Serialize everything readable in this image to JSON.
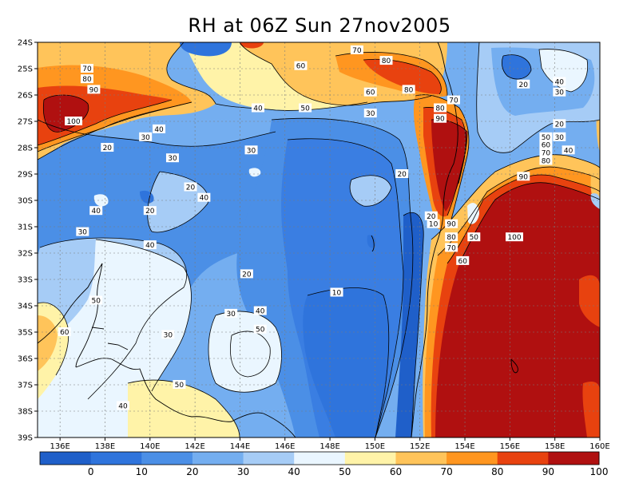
{
  "title": "RH at 06Z Sun 27nov2005",
  "chart_data": {
    "type": "heatmap",
    "variable": "RH",
    "lon_ticks": [
      "136E",
      "138E",
      "140E",
      "142E",
      "144E",
      "146E",
      "148E",
      "150E",
      "152E",
      "154E",
      "156E",
      "158E",
      "160E"
    ],
    "lat_ticks": [
      "24S",
      "25S",
      "26S",
      "27S",
      "28S",
      "29S",
      "30S",
      "31S",
      "32S",
      "33S",
      "34S",
      "35S",
      "36S",
      "37S",
      "38S",
      "39S"
    ],
    "lon_range": [
      135,
      160
    ],
    "lat_range": [
      -39,
      -24
    ],
    "colorbar": {
      "labels": [
        "0",
        "10",
        "20",
        "30",
        "40",
        "50",
        "60",
        "70",
        "80",
        "90",
        "100"
      ],
      "colors": [
        "#1f5fc9",
        "#2f74dc",
        "#4b8fe6",
        "#74aef0",
        "#a6ccf6",
        "#eaf6ff",
        "#fff3a8",
        "#ffc45a",
        "#ff9620",
        "#e8420f",
        "#b01010"
      ]
    },
    "contour_labels": [
      {
        "text": "70",
        "lon": 137.2,
        "lat": -25.0
      },
      {
        "text": "80",
        "lon": 137.2,
        "lat": -25.4
      },
      {
        "text": "90",
        "lon": 137.5,
        "lat": -25.8
      },
      {
        "text": "100",
        "lon": 136.6,
        "lat": -27.0
      },
      {
        "text": "40",
        "lon": 140.4,
        "lat": -27.3
      },
      {
        "text": "30",
        "lon": 139.8,
        "lat": -27.6
      },
      {
        "text": "20",
        "lon": 138.1,
        "lat": -28.0
      },
      {
        "text": "30",
        "lon": 141.0,
        "lat": -28.4
      },
      {
        "text": "30",
        "lon": 144.5,
        "lat": -28.1
      },
      {
        "text": "20",
        "lon": 141.8,
        "lat": -29.5
      },
      {
        "text": "40",
        "lon": 142.4,
        "lat": -29.9
      },
      {
        "text": "40",
        "lon": 137.6,
        "lat": -30.4
      },
      {
        "text": "20",
        "lon": 140.0,
        "lat": -30.4
      },
      {
        "text": "30",
        "lon": 137.0,
        "lat": -31.2
      },
      {
        "text": "40",
        "lon": 140.0,
        "lat": -31.7
      },
      {
        "text": "20",
        "lon": 144.3,
        "lat": -32.8
      },
      {
        "text": "50",
        "lon": 137.6,
        "lat": -33.8
      },
      {
        "text": "30",
        "lon": 143.6,
        "lat": -34.3
      },
      {
        "text": "40",
        "lon": 144.9,
        "lat": -34.2
      },
      {
        "text": "60",
        "lon": 136.2,
        "lat": -35.0
      },
      {
        "text": "30",
        "lon": 140.8,
        "lat": -35.1
      },
      {
        "text": "50",
        "lon": 144.9,
        "lat": -34.9
      },
      {
        "text": "50",
        "lon": 141.3,
        "lat": -37.0
      },
      {
        "text": "40",
        "lon": 138.8,
        "lat": -37.8
      },
      {
        "text": "10",
        "lon": 148.3,
        "lat": -33.5
      },
      {
        "text": "60",
        "lon": 146.7,
        "lat": -24.9
      },
      {
        "text": "70",
        "lon": 149.2,
        "lat": -24.3
      },
      {
        "text": "80",
        "lon": 150.5,
        "lat": -24.7
      },
      {
        "text": "60",
        "lon": 149.8,
        "lat": -25.9
      },
      {
        "text": "80",
        "lon": 151.5,
        "lat": -25.8
      },
      {
        "text": "50",
        "lon": 146.9,
        "lat": -26.5
      },
      {
        "text": "40",
        "lon": 144.8,
        "lat": -26.5
      },
      {
        "text": "30",
        "lon": 149.8,
        "lat": -26.7
      },
      {
        "text": "70",
        "lon": 153.5,
        "lat": -26.2
      },
      {
        "text": "80",
        "lon": 152.9,
        "lat": -26.5
      },
      {
        "text": "90",
        "lon": 152.9,
        "lat": -26.9
      },
      {
        "text": "20",
        "lon": 151.2,
        "lat": -29.0
      },
      {
        "text": "20",
        "lon": 152.5,
        "lat": -30.6
      },
      {
        "text": "10",
        "lon": 152.6,
        "lat": -30.9
      },
      {
        "text": "90",
        "lon": 153.4,
        "lat": -30.9
      },
      {
        "text": "80",
        "lon": 153.4,
        "lat": -31.4
      },
      {
        "text": "70",
        "lon": 153.4,
        "lat": -31.8
      },
      {
        "text": "60",
        "lon": 153.9,
        "lat": -32.3
      },
      {
        "text": "50",
        "lon": 154.4,
        "lat": -31.4
      },
      {
        "text": "100",
        "lon": 156.2,
        "lat": -31.4
      },
      {
        "text": "20",
        "lon": 156.6,
        "lat": -25.6
      },
      {
        "text": "40",
        "lon": 158.2,
        "lat": -25.5
      },
      {
        "text": "30",
        "lon": 158.2,
        "lat": -25.9
      },
      {
        "text": "20",
        "lon": 158.2,
        "lat": -27.1
      },
      {
        "text": "50",
        "lon": 157.6,
        "lat": -27.6
      },
      {
        "text": "60",
        "lon": 157.6,
        "lat": -27.9
      },
      {
        "text": "30",
        "lon": 158.2,
        "lat": -27.6
      },
      {
        "text": "70",
        "lon": 157.6,
        "lat": -28.2
      },
      {
        "text": "40",
        "lon": 158.6,
        "lat": -28.1
      },
      {
        "text": "80",
        "lon": 157.6,
        "lat": -28.5
      },
      {
        "text": "90",
        "lon": 156.6,
        "lat": -29.1
      }
    ]
  }
}
